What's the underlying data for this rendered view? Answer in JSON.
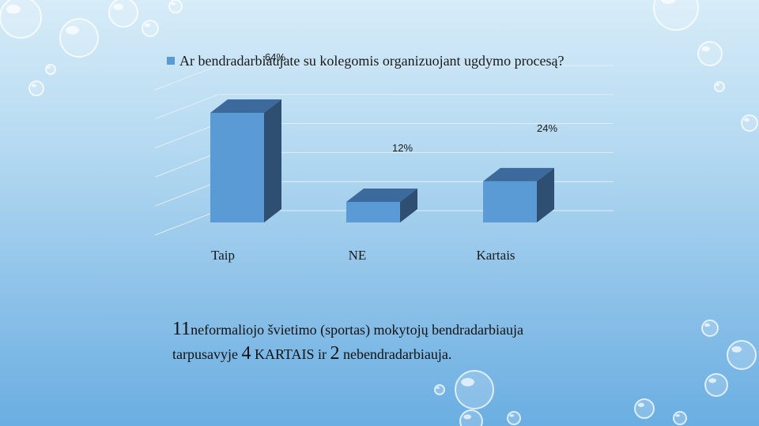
{
  "chart_data": {
    "type": "bar",
    "legend": {
      "label": "Ar bendradarbiaujate su kolegomis organizuojant ugdymo procesą?",
      "position": "top-left"
    },
    "categories": [
      "Taip",
      "NE",
      "Kartais"
    ],
    "series": [
      {
        "name": "Ar bendradarbiaujate su kolegomis organizuojant ugdymo procesą?",
        "values": [
          64,
          12,
          24
        ],
        "data_labels": [
          "64%",
          "12%",
          "24%"
        ]
      }
    ],
    "unit": "%",
    "ylim": [
      0,
      100
    ],
    "grid": true,
    "style": "3d-column"
  },
  "caption": {
    "line1": {
      "num": "11",
      "text": "neformaliojo švietimo (sportas) mokytojų bendradarbiauja"
    },
    "line2": {
      "prefix": "tarpusavyje ",
      "num1": "4",
      "middle1": " KARTAIS  ir ",
      "num2": "2",
      "suffix": " nebendradarbiauja."
    }
  },
  "colors": {
    "bar_front": "#5b9bd5",
    "bar_side": "#2e4e72",
    "bar_top": "#3c6a9c",
    "grid": "#e3eef6",
    "text": "#1a1a1a"
  }
}
